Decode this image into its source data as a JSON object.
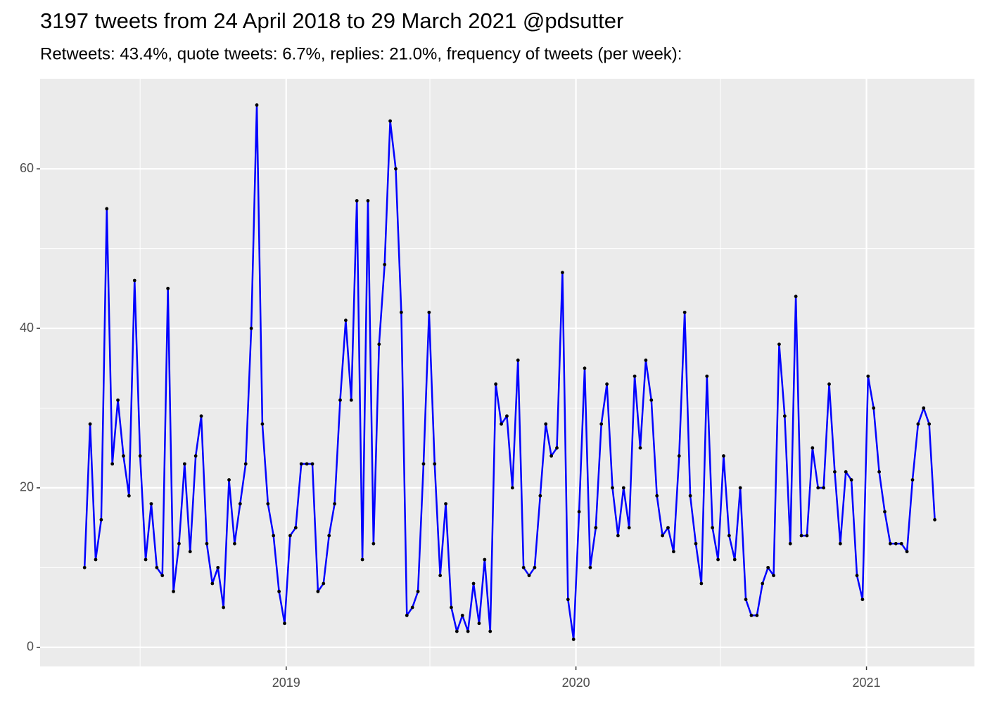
{
  "chart_data": {
    "type": "line",
    "title": "3197 tweets from 24 April 2018 to 29 March 2021 @pdsutter",
    "subtitle": "Retweets: 43.4%, quote tweets: 6.7%, replies: 21.0%, frequency of tweets (per week):",
    "x": [
      "2018-04-22",
      "2018-04-29",
      "2018-05-06",
      "2018-05-13",
      "2018-05-20",
      "2018-05-27",
      "2018-06-03",
      "2018-06-10",
      "2018-06-17",
      "2018-06-24",
      "2018-07-01",
      "2018-07-08",
      "2018-07-15",
      "2018-07-22",
      "2018-07-29",
      "2018-08-05",
      "2018-08-12",
      "2018-08-19",
      "2018-08-26",
      "2018-09-02",
      "2018-09-09",
      "2018-09-16",
      "2018-09-23",
      "2018-09-30",
      "2018-10-07",
      "2018-10-14",
      "2018-10-21",
      "2018-10-28",
      "2018-11-04",
      "2018-11-11",
      "2018-11-18",
      "2018-11-25",
      "2018-12-02",
      "2018-12-09",
      "2018-12-16",
      "2018-12-23",
      "2018-12-30",
      "2019-01-06",
      "2019-01-13",
      "2019-01-20",
      "2019-01-27",
      "2019-02-03",
      "2019-02-10",
      "2019-02-17",
      "2019-02-24",
      "2019-03-03",
      "2019-03-10",
      "2019-03-17",
      "2019-03-24",
      "2019-03-31",
      "2019-04-07",
      "2019-04-14",
      "2019-04-21",
      "2019-04-28",
      "2019-05-05",
      "2019-05-12",
      "2019-05-19",
      "2019-05-26",
      "2019-06-02",
      "2019-06-09",
      "2019-06-16",
      "2019-06-23",
      "2019-06-30",
      "2019-07-07",
      "2019-07-14",
      "2019-07-21",
      "2019-07-28",
      "2019-08-04",
      "2019-08-11",
      "2019-08-18",
      "2019-08-25",
      "2019-09-01",
      "2019-09-08",
      "2019-09-15",
      "2019-09-22",
      "2019-09-29",
      "2019-10-06",
      "2019-10-13",
      "2019-10-20",
      "2019-10-27",
      "2019-11-03",
      "2019-11-10",
      "2019-11-17",
      "2019-11-24",
      "2019-12-01",
      "2019-12-08",
      "2019-12-15",
      "2019-12-22",
      "2019-12-29",
      "2020-01-05",
      "2020-01-12",
      "2020-01-19",
      "2020-01-26",
      "2020-02-02",
      "2020-02-09",
      "2020-02-16",
      "2020-02-23",
      "2020-03-01",
      "2020-03-08",
      "2020-03-15",
      "2020-03-22",
      "2020-03-29",
      "2020-04-05",
      "2020-04-12",
      "2020-04-19",
      "2020-04-26",
      "2020-05-03",
      "2020-05-10",
      "2020-05-17",
      "2020-05-24",
      "2020-05-31",
      "2020-06-07",
      "2020-06-14",
      "2020-06-21",
      "2020-06-28",
      "2020-07-05",
      "2020-07-12",
      "2020-07-19",
      "2020-07-26",
      "2020-08-02",
      "2020-08-09",
      "2020-08-16",
      "2020-08-23",
      "2020-08-30",
      "2020-09-06",
      "2020-09-13",
      "2020-09-20",
      "2020-09-27",
      "2020-10-04",
      "2020-10-11",
      "2020-10-18",
      "2020-10-25",
      "2020-11-01",
      "2020-11-08",
      "2020-11-15",
      "2020-11-22",
      "2020-11-29",
      "2020-12-06",
      "2020-12-13",
      "2020-12-20",
      "2020-12-27",
      "2021-01-03",
      "2021-01-10",
      "2021-01-17",
      "2021-01-24",
      "2021-01-31",
      "2021-02-07",
      "2021-02-14",
      "2021-02-21",
      "2021-02-28",
      "2021-03-07",
      "2021-03-14",
      "2021-03-21",
      "2021-03-28"
    ],
    "series": [
      {
        "color": "#0000ff",
        "point_color": "#000000",
        "values": [
          10,
          28,
          11,
          16,
          55,
          23,
          31,
          24,
          19,
          46,
          24,
          11,
          18,
          10,
          9,
          45,
          7,
          13,
          23,
          12,
          24,
          29,
          13,
          8,
          10,
          5,
          21,
          13,
          18,
          23,
          40,
          68,
          28,
          18,
          14,
          7,
          3,
          14,
          15,
          23,
          23,
          23,
          7,
          8,
          14,
          18,
          31,
          41,
          31,
          56,
          11,
          56,
          13,
          38,
          48,
          66,
          60,
          42,
          4,
          5,
          7,
          23,
          42,
          23,
          9,
          18,
          5,
          2,
          4,
          2,
          8,
          3,
          11,
          2,
          33,
          28,
          29,
          20,
          36,
          10,
          9,
          10,
          19,
          28,
          24,
          25,
          47,
          6,
          1,
          17,
          35,
          10,
          15,
          28,
          33,
          20,
          14,
          20,
          15,
          34,
          25,
          36,
          31,
          19,
          14,
          15,
          12,
          24,
          42,
          19,
          13,
          8,
          34,
          15,
          11,
          24,
          14,
          11,
          20,
          6,
          4,
          4,
          8,
          10,
          9,
          38,
          29,
          13,
          44,
          14,
          14,
          25,
          20,
          20,
          33,
          22,
          13,
          22,
          21,
          9,
          6,
          34,
          30,
          22,
          17,
          13,
          13,
          13,
          12,
          21,
          28,
          30,
          28,
          16
        ]
      }
    ],
    "xlim": [
      "2018-02-25",
      "2021-05-17"
    ],
    "xticks": [
      {
        "value": "2019-01-01",
        "label": "2019"
      },
      {
        "value": "2020-01-01",
        "label": "2020"
      },
      {
        "value": "2021-01-01",
        "label": "2021"
      }
    ],
    "xticks_minor": [
      "2018-07-01",
      "2019-07-01",
      "2020-07-01"
    ],
    "ylim": [
      -2.4,
      71.3
    ],
    "yticks": [
      0,
      20,
      40,
      60
    ],
    "yticks_minor": [
      10,
      30,
      50
    ],
    "grid": true
  }
}
